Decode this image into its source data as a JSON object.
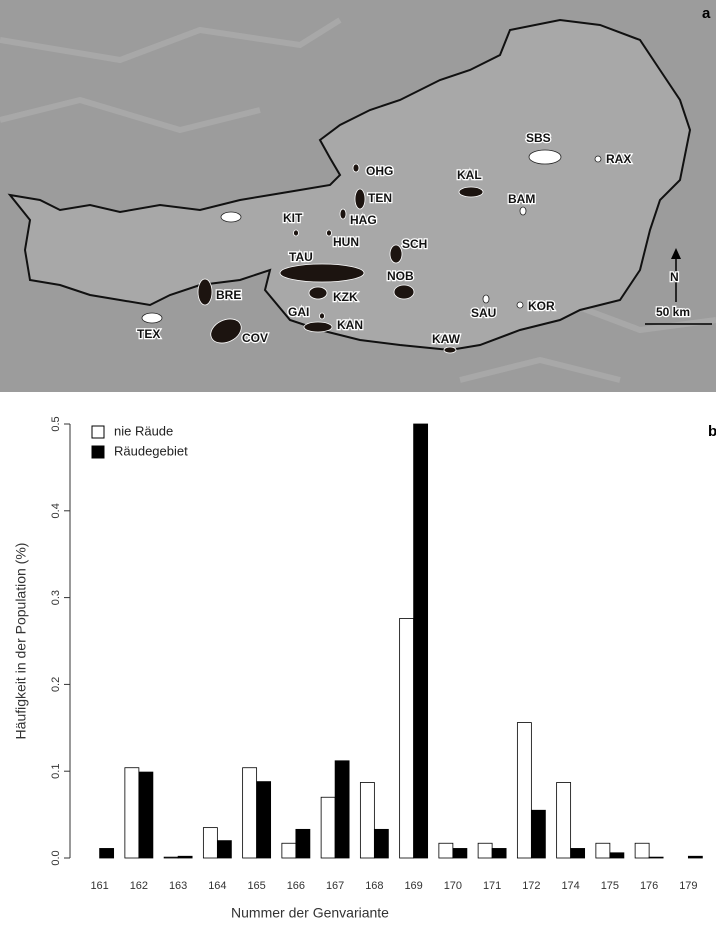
{
  "panel_a": {
    "label": "a",
    "north": "N",
    "scale": "50 km",
    "sites": [
      "OHG",
      "TEN",
      "HAG",
      "KIT",
      "HUN",
      "SCH",
      "TAU",
      "NOB",
      "KZK",
      "BRE",
      "GAI",
      "KAN",
      "COV",
      "TEX",
      "KAW",
      "SAU",
      "KOR",
      "SBS",
      "RAX",
      "KAL",
      "BAM"
    ]
  },
  "chart_data": {
    "type": "bar",
    "panel_label": "b",
    "x_label": "Nummer der Genvariante",
    "y_label": "Häufigkeit in der Population (%)",
    "categories": [
      "161",
      "162",
      "163",
      "164",
      "165",
      "166",
      "167",
      "168",
      "169",
      "170",
      "171",
      "172",
      "174",
      "175",
      "176",
      "179"
    ],
    "series": [
      {
        "name": "nie Räude",
        "color": "#ffffff",
        "values": [
          0,
          0.104,
          0.001,
          0.035,
          0.104,
          0.017,
          0.07,
          0.087,
          0.276,
          0.017,
          0.017,
          0.156,
          0.087,
          0.017,
          0.017,
          0
        ]
      },
      {
        "name": "Räudegebiet",
        "color": "#000000",
        "values": [
          0.011,
          0.099,
          0.002,
          0.02,
          0.088,
          0.033,
          0.112,
          0.033,
          0.5,
          0.011,
          0.011,
          0.055,
          0.011,
          0.006,
          0.001,
          0.002
        ]
      }
    ],
    "ylim": [
      0,
      0.5
    ],
    "yticks": [
      {
        "value": 0,
        "label": "0.0"
      },
      0.1,
      0.2,
      0.3,
      0.4,
      0.5
    ],
    "legend": "top-left",
    "grid": false
  }
}
